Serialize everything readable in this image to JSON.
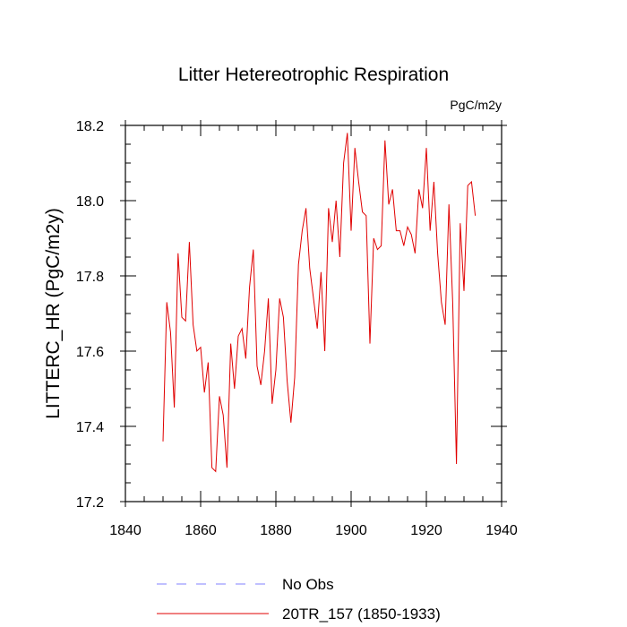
{
  "chart_data": {
    "type": "line",
    "title": "Litter Hetereotrophic Respiration",
    "units": "PgC/m2y",
    "ylabel": "LITTERC_HR  (PgC/m2y)",
    "xlabel": "",
    "xlim": [
      1840,
      1940
    ],
    "ylim": [
      17.2,
      18.2
    ],
    "x_ticks": [
      1840,
      1860,
      1880,
      1900,
      1920,
      1940
    ],
    "y_ticks": [
      17.2,
      17.4,
      17.6,
      17.8,
      18.0,
      18.2
    ],
    "x_tick_labels": [
      "1840",
      "1860",
      "1880",
      "1900",
      "1920",
      "1940"
    ],
    "y_tick_labels": [
      "17.2",
      "17.4",
      "17.6",
      "17.8",
      "18.0",
      "18.2"
    ],
    "grid": false,
    "legend_position": "bottom",
    "series": [
      {
        "name": "No Obs",
        "color": "#8080ff",
        "dashed": true,
        "x": [],
        "values": []
      },
      {
        "name": "20TR_157 (1850-1933)",
        "color": "#e00000",
        "dashed": false,
        "x": [
          1850,
          1851,
          1852,
          1853,
          1854,
          1855,
          1856,
          1857,
          1858,
          1859,
          1860,
          1861,
          1862,
          1863,
          1864,
          1865,
          1866,
          1867,
          1868,
          1869,
          1870,
          1871,
          1872,
          1873,
          1874,
          1875,
          1876,
          1877,
          1878,
          1879,
          1880,
          1881,
          1882,
          1883,
          1884,
          1885,
          1886,
          1887,
          1888,
          1889,
          1890,
          1891,
          1892,
          1893,
          1894,
          1895,
          1896,
          1897,
          1898,
          1899,
          1900,
          1901,
          1902,
          1903,
          1904,
          1905,
          1906,
          1907,
          1908,
          1909,
          1910,
          1911,
          1912,
          1913,
          1914,
          1915,
          1916,
          1917,
          1918,
          1919,
          1920,
          1921,
          1922,
          1923,
          1924,
          1925,
          1926,
          1927,
          1928,
          1929,
          1930,
          1931,
          1932,
          1933
        ],
        "values": [
          17.36,
          17.73,
          17.65,
          17.45,
          17.86,
          17.69,
          17.68,
          17.89,
          17.67,
          17.6,
          17.61,
          17.49,
          17.57,
          17.29,
          17.28,
          17.48,
          17.43,
          17.29,
          17.62,
          17.5,
          17.64,
          17.66,
          17.58,
          17.77,
          17.87,
          17.56,
          17.51,
          17.6,
          17.74,
          17.46,
          17.55,
          17.74,
          17.69,
          17.52,
          17.41,
          17.53,
          17.83,
          17.92,
          17.98,
          17.82,
          17.74,
          17.66,
          17.81,
          17.6,
          17.98,
          17.89,
          18.0,
          17.85,
          18.1,
          18.18,
          17.92,
          18.14,
          18.05,
          17.97,
          17.96,
          17.62,
          17.9,
          17.87,
          17.88,
          18.16,
          17.99,
          18.03,
          17.92,
          17.92,
          17.88,
          17.93,
          17.91,
          17.86,
          18.03,
          17.98,
          18.14,
          17.92,
          18.05,
          17.86,
          17.73,
          17.67,
          17.99,
          17.73,
          17.3,
          17.94,
          17.76,
          18.04,
          18.05,
          17.96
        ]
      }
    ]
  }
}
